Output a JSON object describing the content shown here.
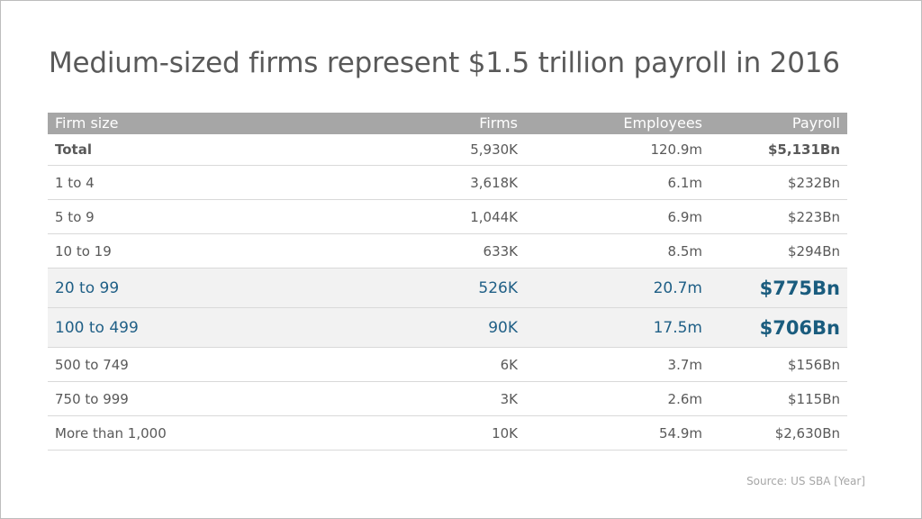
{
  "title": "Medium-sized firms represent $1.5 trillion payroll in 2016",
  "source": "Source: US SBA [Year]",
  "colors": {
    "header": "#a6a6a6",
    "highlight_row": "#f2f2f2",
    "highlight_text": "#1f5f86",
    "text": "#595959"
  },
  "chart_data": {
    "type": "table",
    "title": "Medium-sized firms represent $1.5 trillion payroll in 2016",
    "columns": [
      "Firm size",
      "Firms",
      "Employees",
      "Payroll"
    ],
    "rows": [
      {
        "size": "Total",
        "firms": "5,930K",
        "employees": "120.9m",
        "payroll": "$5,131Bn",
        "style": "total"
      },
      {
        "size": "1 to 4",
        "firms": "3,618K",
        "employees": "6.1m",
        "payroll": "$232Bn",
        "style": "normal"
      },
      {
        "size": "5 to 9",
        "firms": "1,044K",
        "employees": "6.9m",
        "payroll": "$223Bn",
        "style": "normal"
      },
      {
        "size": "10 to 19",
        "firms": "633K",
        "employees": "8.5m",
        "payroll": "$294Bn",
        "style": "normal"
      },
      {
        "size": "20 to 99",
        "firms": "526K",
        "employees": "20.7m",
        "payroll": "$775Bn",
        "style": "highlight"
      },
      {
        "size": "100 to 499",
        "firms": "90K",
        "employees": "17.5m",
        "payroll": "$706Bn",
        "style": "highlight"
      },
      {
        "size": "500 to 749",
        "firms": "6K",
        "employees": "3.7m",
        "payroll": "$156Bn",
        "style": "normal"
      },
      {
        "size": "750 to 999",
        "firms": "3K",
        "employees": "2.6m",
        "payroll": "$115Bn",
        "style": "normal"
      },
      {
        "size": "More than 1,000",
        "firms": "10K",
        "employees": "54.9m",
        "payroll": "$2,630Bn",
        "style": "normal"
      }
    ]
  }
}
